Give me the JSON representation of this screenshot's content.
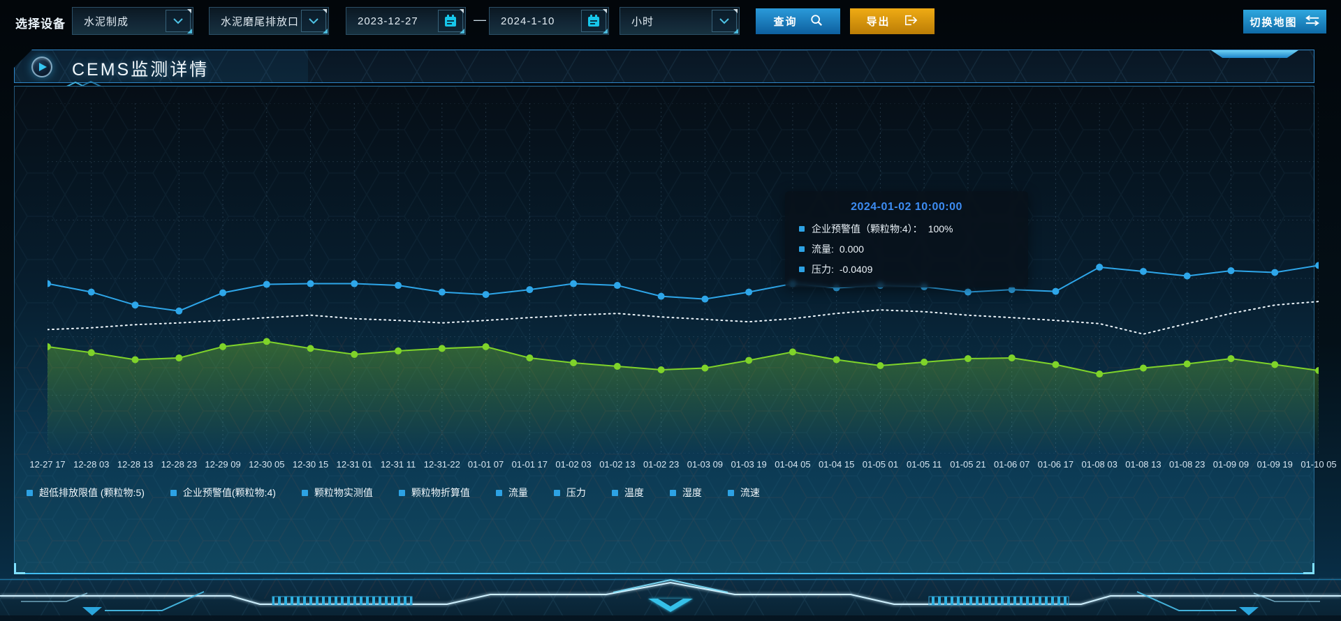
{
  "toolbar": {
    "device_label": "选择设备",
    "device_select": "水泥制成",
    "outlet_select": "水泥磨尾排放口",
    "date_start": "2023-12-27",
    "date_separator": "—",
    "date_end": "2024-1-10",
    "interval_select": "小时",
    "query_label": "查询",
    "export_label": "导出",
    "switch_map_label": "切换地图"
  },
  "panel": {
    "title": "CEMS监测详情"
  },
  "tooltip": {
    "title": "2024-01-02 10:00:00",
    "items": [
      {
        "label": "企业预警值（颗粒物:4）：",
        "value": "100%"
      },
      {
        "label": "流量:",
        "value": "0.000"
      },
      {
        "label": "压力:",
        "value": "-0.0409"
      }
    ]
  },
  "colors": {
    "accent_cyan": "#3ec8f0",
    "series_blue": "#2ea6e9",
    "series_white": "#eef6fb",
    "series_green": "#7fd32a",
    "legend_marker": "#2da2e4",
    "tooltip_title": "#3d8cf2",
    "export_orange": "#efab14"
  },
  "chart_data": {
    "type": "line",
    "title": "",
    "xlabel": "",
    "ylabel": "",
    "ylim": [
      0,
      100
    ],
    "grid": true,
    "legend_position": "bottom",
    "x": [
      "12-27 17",
      "12-28 03",
      "12-28 13",
      "12-28 23",
      "12-29 09",
      "12-30 05",
      "12-30 15",
      "12-31 01",
      "12-31 11",
      "12-31-22",
      "01-01 07",
      "01-01 17",
      "01-02 03",
      "01-02 13",
      "01-02 23",
      "01-03 09",
      "01-03 19",
      "01-04 05",
      "01-04 15",
      "01-05 01",
      "01-05 11",
      "01-05 21",
      "01-06 07",
      "01-06 17",
      "01-08 03",
      "01-08 13",
      "01-08 23",
      "01-09 09",
      "01-09 19",
      "01-10 05"
    ],
    "series": [
      {
        "name": "series-blue-markers",
        "color": "#2ea6e9",
        "style": "solid",
        "markers": true,
        "area": false,
        "values": [
          48.5,
          46.1,
          42.4,
          40.7,
          45.9,
          48.3,
          48.5,
          48.5,
          48.0,
          46.1,
          45.4,
          46.8,
          48.5,
          48.0,
          44.9,
          44.1,
          46.1,
          48.5,
          47.3,
          48.0,
          47.6,
          46.1,
          46.8,
          46.3,
          53.2,
          52.0,
          50.7,
          52.2,
          51.7,
          53.7
        ]
      },
      {
        "name": "series-white-dotted",
        "color": "#eef6fb",
        "style": "dotted",
        "markers": false,
        "area": false,
        "values": [
          35.4,
          35.9,
          36.8,
          37.3,
          38.0,
          38.8,
          39.5,
          38.5,
          38.0,
          37.3,
          38.0,
          38.8,
          39.5,
          40.0,
          39.0,
          38.3,
          37.6,
          38.5,
          40.0,
          41.0,
          40.5,
          39.5,
          38.8,
          38.0,
          37.1,
          34.1,
          37.1,
          40.0,
          42.4,
          43.4
        ]
      },
      {
        "name": "series-green-area",
        "color": "#7fd32a",
        "style": "solid",
        "markers": true,
        "area": true,
        "values": [
          30.5,
          28.8,
          26.8,
          27.3,
          30.5,
          32.0,
          30.0,
          28.3,
          29.3,
          30.0,
          30.5,
          27.3,
          25.9,
          24.9,
          23.9,
          24.4,
          26.6,
          29.0,
          26.8,
          25.1,
          26.1,
          27.1,
          27.3,
          25.4,
          22.7,
          24.4,
          25.6,
          27.1,
          25.4,
          23.7
        ]
      }
    ],
    "legend": [
      "超低排放限值 (颗粒物:5)",
      "企业预警值(颗粒物:4)",
      "颗粒物实测值",
      "颗粒物折算值",
      "流量",
      "压力",
      "温度",
      "湿度",
      "流速"
    ]
  }
}
